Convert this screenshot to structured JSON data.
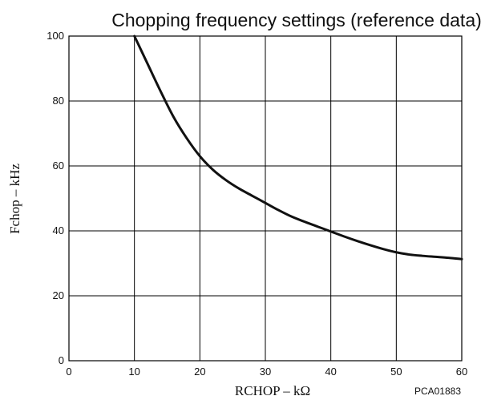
{
  "chart_data": {
    "type": "line",
    "title": "Chopping frequency settings (reference data)",
    "xlabel": "RCHOP  –  kΩ",
    "ylabel": "Fchop  –  kHz",
    "figure_code": "PCA01883",
    "xlim": [
      0,
      60
    ],
    "ylim": [
      0,
      100
    ],
    "xticks": [
      "0",
      "10",
      "20",
      "30",
      "40",
      "50",
      "60"
    ],
    "yticks": [
      "0",
      "20",
      "40",
      "60",
      "80",
      "100"
    ],
    "grid": true,
    "series": [
      {
        "x": [
          10,
          12,
          14,
          16,
          18,
          20,
          22,
          24,
          26,
          28,
          30,
          32,
          34,
          36,
          38,
          40,
          42,
          44,
          46,
          48,
          50,
          52,
          54,
          56,
          58,
          60
        ],
        "values": [
          100,
          91.5,
          83,
          75,
          68.5,
          63,
          58.8,
          55.6,
          53,
          50.8,
          48.6,
          46.4,
          44.4,
          42.8,
          41.3,
          39.8,
          38.3,
          36.9,
          35.6,
          34.4,
          33.4,
          32.7,
          32.3,
          32,
          31.7,
          31.3
        ]
      }
    ]
  }
}
